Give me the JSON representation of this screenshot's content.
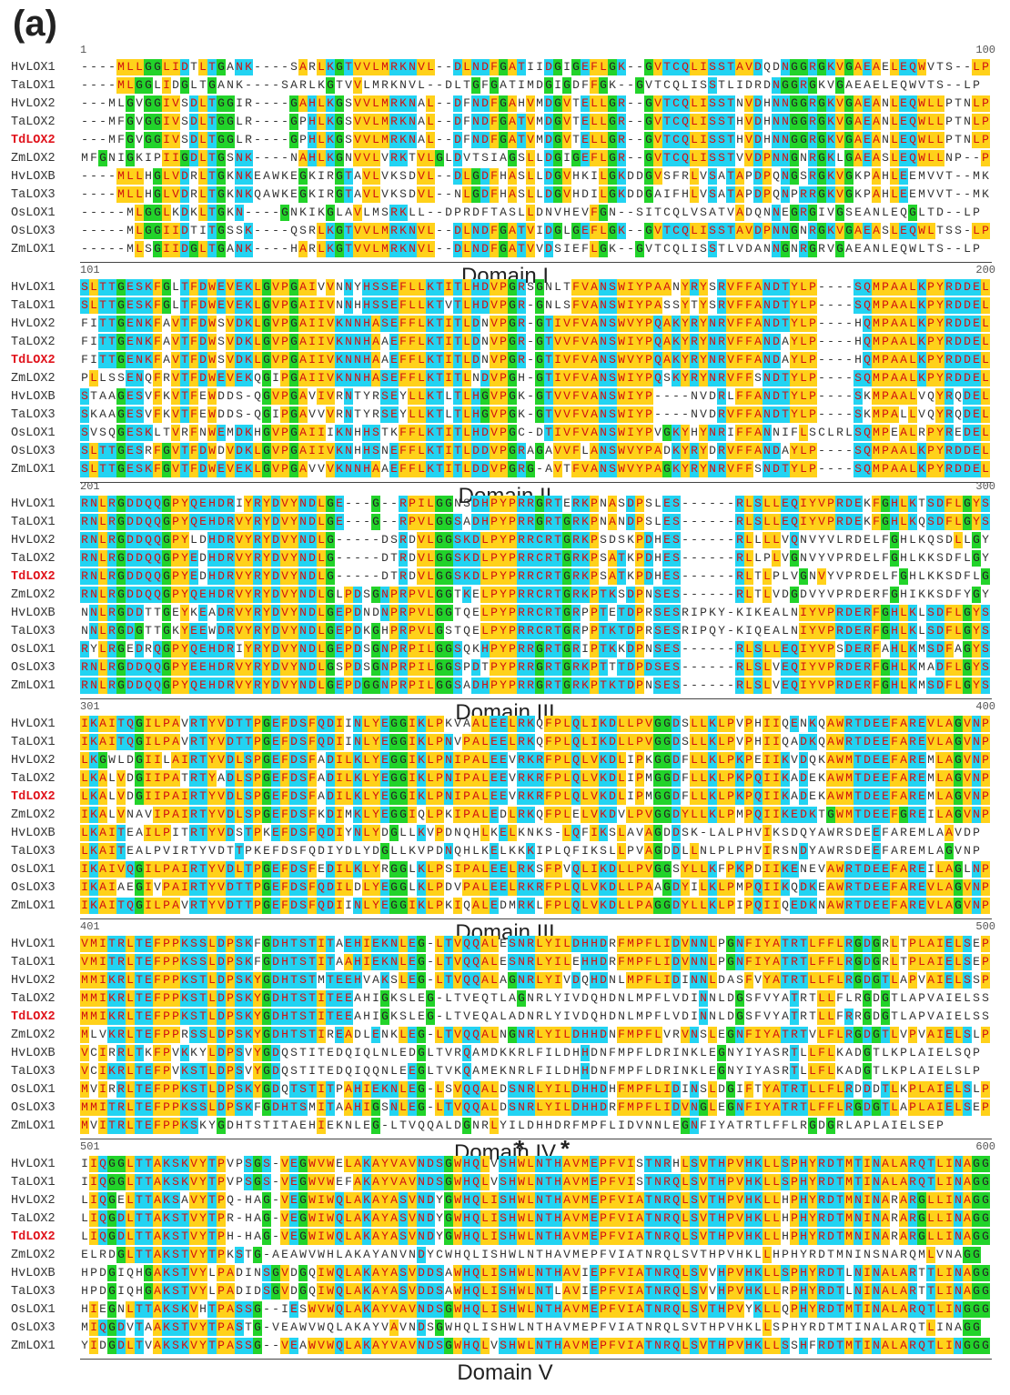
{
  "figure_label": "(a)",
  "sequence_names": [
    "HvLOX1",
    "TaLOX1",
    "HvLOX2",
    "TaLOX2",
    "TdLOX2",
    "ZmLOX2",
    "HvLOXB",
    "TaLOX3",
    "OsLOX1",
    "OsLOX3",
    "ZmLOX1"
  ],
  "highlighted_name": "TdLOX2",
  "colors": {
    "blue": "#22d3f2",
    "yellow": "#ffd11a",
    "green": "#22d32a",
    "highlight_red": "#e0121b"
  },
  "blocks": [
    {
      "start": "1",
      "end": "100",
      "domain": "Domain I",
      "rows": [
        "----MLLGGLIDTLTGANK----SARLKGTVVLMRKNVL--DLNDFGATIIDGIGEFLGK--GVTCQLISSTAVDQDNGGRGKVGAEAELEQWVTS--LP",
        "----MLGGLIDGLTGANK----SARLKGTVVLMRKNVL--DLTGFGATIMDGIGDFFGK--GVTCQLISSTLIDRDNGGRGKVGAEAELEQWVTS--LP",
        "---MLGVGGIVSDLTGGIR----GAHLKGSVVLMRKNAL--DFNDFGAHVMDGVTELLGR--GVTCQLISSTNVDHNNGGRGKVGAEANLEQWLLPTNLP",
        "---MFGVGGIVSDLTGGLR----GPHLKGSVVLMRKNAL--DFNDFGATVMDGVTELLGR--GVTCQLISSTHVDHNNGGRGKVGAEANLEQWLLPTNLP",
        "---MFGVGGIVSDLTGGLR----GPHLKGSVVLMRKNAL--DFNDFGATVMDGVTELLGR--GVTCQLISSTHVDHNNGGRGKVGAEANLEQWLLPTNLP",
        "MFGNIGKIPIIGDLTGSNK----NAHLKGNVVLVRKTVLGLDVTSIAGSLLDGIGEFLGR--GVTCQLISSTVVDPNNGNRGKLGAEASLEQWLLNP--P",
        "----MLLHGLVDRLTGKNKEAWKEGKIRGTAVLVKSDVL--DLGDFHASLLDGVHKILGKDDGVSFRLVSATAPDPQNGSRGKVGKPAHLEEMVVT--MK",
        "----MLLHGLVDRLTGKNKQAWKEGKIRGTAVLVKSDVL--NLGDFHASLLDGVHDILGKDDGAIFHLVSATAPDPQNPRRGKVGKPAHLEEMVVT--MK",
        "-----MLGGLKDKLTGKN----GNKIKGLAVLMSRKLL--DPRDFTASLLDNVHEVFGN--SITCQLVSATVADQNNEGRGIVGSEANLEQGLTD--LP",
        "-----MLGGIIDTITGSSK----QSRLKGTVVLMRKNVL--DLNDFGATVIDGLGEFLGK--GVTCQLISSTAVDPNNGNRGKVGAEASLEQWLTSS-LP",
        "-----MLSGIIDGLTGANK----HARLKGTVVLMRKNVL--DLNDFGATVVDSIEFLGK--GVTCQLISSTLVDANNGNRGRVGAEANLEQWLTS--LP"
      ]
    },
    {
      "start": "101",
      "end": "200",
      "domain": "Domain II",
      "rows": [
        "SLTTGESKFGLTFDWEVEKLGVPGAIVVNNYHSSEFLLKTITLHDVPGRSGNLTFVANSWIYPAANYRYSRVFFANDTYLP----SQMPAALKPYRDDEL",
        "SLTTGESKFGLTFDWEVEKLGVPGAIIVNNHHSSEFLLKTVTLHDVPGR-GNLSFVANSWIYPASSYTYSRVFFANDTYLP----SQMPAALKPYRDDEL",
        "FITTGENKFAVTFDWSVDKLGVPGAIIVKNNHASEFFLKTITLDNVPGR-GTIVFVANSWVYPQAKYRYNRVFFANDTYLP----HQMPAALKPYRDDEL",
        "FITTGENKFAVTFDWSVDKLGVPGAIIVKNNHAAEFFLKTITLDNVPGR-GTVVFVANSWIYPQAKYRYNRVFFANDAYLP----HQMPAALKPYRDDEL",
        "FITTGENKFAVTFDWSVDKLGVPGAIIVKNNHAAEFFLKTITLDNVPGR-GTIVFVANSWVYPQAKYRYNRVFFANDAYLP----HQMPAALKPYRDDEL",
        "PLLSSENQFRVTFDWEVEKQGIPGAIIVKNNHASEFFLKTITLNDVPGH-GTIVFVANSWIYPQSKYRYNRVFFSNDTYLP----SQMPAALKPYRDDEL",
        "STAAGESVFKVTFEWDDS-QGVPGAVIVRNTYRSEYLLKTLTLHGVPGK-GTVVFVANSWIYP----NVDRLFFANDTYLP----SKMPAALVQYRQDEL",
        "SKAAGESVFKVTFEWDDS-QGIPGAVVVRNTYRSEYLLKTLTLHGVPGK-GTVVFVANSWIYP----NVDRVFFANDTYLP----SKMPALLVQYRQDEL",
        "SVSQGESKLTVRFNWEMDKHGVPGAIIIKNHHSTKFFLKTITLHDVPGC-DTIVFVANSWIYPVGKYHYNRIFFANNIFLSCLRLSQMPEALRPYREDEL",
        "SLTTGESRFGVTFDWDVDKLGVPGAIIVKNHHSNEFFLKTITLDDVPGRAGAVVFLANSWVYPADKYRYDRVFFANDAYLP----SQMPAALKPYRDDEL",
        "SLTTGESKFGVTFDWEVEKLGVPGAVVVKNNHAAEFFLKTITLDDVPGRG-AVTFVANSWVYPAGKYRYNRVFFSNDTYLP----SQMPAALKPYRDDEL"
      ]
    },
    {
      "start": "201",
      "end": "300",
      "domain": "Domain III",
      "rows": [
        "RNLRGDDQQGPYQEHDRIYRYDVYNDLGE---G--RPILGGNSDHPYPRRGRTERKPNASDPSLES------RLSLLEQIYVPRDEKFGHLKTSDFLGYS",
        "RNLRGDDQQGPYQEHDRVYRYDVYNDLGE---G--RPVLGGSADHPYPRRGRTGRKPNANDPSLES------RLSLLEQIYVPRDEKFGHLKQSDFLGYS",
        "RNLRGDDQQGPYLDHDRVYRYDVYNDLG-----DSRDVLGGSKDLPYPRRCRTGRKPSDSKPDHES------RLLLLVQNVYVLRDELFGHLKQSDLLGYT",
        "RNLRGDDQQGPYEDHDRVYRYDVYNDLG-----DTRDVLGGSKDLPYPRRCRTGRKPSATKPDHES------RLLPLVGNVYVPRDELFGHLKKSDFLGYT",
        "RNLRGDDQQGPYEDHDRVYRYDVYNDLG-----DTRDVLGGSKDLPYPRRCRTGRKPSATKPDHES------RLTLPLVGNVYVPRDELFGHLKKSDFLGYT",
        "RNLRGDDQQGPYQEHDRVYRYDVYNDLGLPDSGNPRPVLGGTKELPYPRRCRTGRKPTKSDPNSES------RLTLVDGDVYVPRDERFGHIKKSDFYGYA",
        "NNLRGDDTTGEYKEADRVYRYDVYNDLGEPDNDNPRPVLGGTQELPYPRRCRTGRPPTETDPRSESRIPKY-KIKEALNIYVPRDERFGHLKLSDFLGYS",
        "NNLRGDGTTGKYEEWDRVYRYDVYNDLGEPDKGHPRPVLGSTQELPYPRRCRTGRPPTKTDPRSESRIPQY-KIQEALNIYVPRDERFGHLKLSDFLGYS",
        "RYLRGEDRQGPYQEHDRIYRYDVYNDLGEPDSGNPRPILGGSQKHPYPRRGRTGRIPTKKDPNSES------RLSLLEQIYVPSDERFAHLKMSDFAGYS",
        "RNLRGDDQQGPYEEHDRVYRYDVYNDLGSPDSGNPRPILGGSPDTPYPRRGRTGRKPTTTDPDSES------RLSLVEQIYVPRDERFGHLKMADFLGYS",
        "RNLRGDDQQGPYQEHDRVYRYDVYNDLGEPDGGNPRPILGGSADHPYPRRGRTGRKPTKTDPNSES------RLSLVEQIYVPRDERFGHLKMSDFLGYS"
      ]
    },
    {
      "start": "301",
      "end": "400",
      "domain": "Domain III",
      "rows": [
        "IKAITQGILPAVRTYVDTTPGEFDSFQDIINLYEGGIKLPKVAALEELRKQFPLQLIKDLLPVGGDSLLKLPVPHIIQENKQAWRTDEEFAREVLAGVNP",
        "IKAITQGILPAVRTYVDTTPGEFDSFQDIINLYEGGIKLPNVPALEELRKQFPLQLIKDLLPVGGDSLLKLPVPHIIQADKQAWRTDEEFAREVLAGVNP",
        "LKGWLDGIILAIRTYVDLSPGEFDSFADILKLYEGGIKLPNIPALEEVRKRFPLQLVKDLIPKGGDFLLKLPKPEIIKVDQKAWMTDEEFAREMLAGVNP",
        "LKALVDGIIPATRTYADLSPGEFDSFADILKLYEGGIKLPNIPALEEVRKRFPLQLVKDLIPMGGDFLLKLPKPQIIKADEKAWMTDEEFAREMLAGVNP",
        "LKALVDGIIPAIRTYVDLSPGEFDSFADILKLYEGGIKLPNIPALEEVRKRFPLQLVKDLIPMGGDFLLKLPKPQIIKADEKAWMTDEEFAREMLAGVNP",
        "IKALVNAVIPAIRTYVDLSPGEFDSFKDIMKLYEGGIQLPKIPALEDLRKQFPLELVKDVLPVGGDYLLKLPMPQIIKEDKTGWMTDEEFGREILAGVNP",
        "LKAITEAILPITRTYVDSTPKEFDSFQDIYNLYDGLLKVPDNQHLKELKNKS-LQFIKSLAVAGDDSK-LALPHVIKSDQYAWRSDEEFAREMLAAVDP",
        "LKAITEALPVIRTYVDTTPKEFDSFQDIYDLYDGLLKVPDNQHLKELKKKIPLQFIKSLLPVAGDDLLNLPLPHVIRSNDYAWRSDEEFAREMLAGVNP",
        "IKAIVQGILPAIRTYVDLTPGEFDSFEDILKLYRGGLKLPSIPALEELRKSFPVQLIKDLLPVGGSYLLKFPKPDIIKENEVAWRTDEEFAREILAGLNP",
        "IKAIAEGIVPAIRTYVDTTPGEFDSFQDILDLYEGGLKLPDVPALEELRKRFPLQLVKDLLPAAGDYILKLPMPQIIKQDKEAWRTDEEFAREVLAGVNP",
        "IKAITQGILPAVRTYVDTTPGEFDSFQDIINLYEGGIKLPKIQALEDMRKLFPLQLVKDLLPAGGDYLLKLPIPQIIQEDKNAWRTDEEFAREVLAGVNP"
      ]
    },
    {
      "start": "401",
      "end": "500",
      "domain": "Domain IV",
      "rows": [
        "VMITRLTEFPPKSSLDPSKFGDHTSTITAEHIEKNLEG-LTVQQALESNRLYILDHHDRFMPFLIDVNNLPGNFIYATRTLFFLRGDGRLTPLAIELSEP",
        "VMITRLTEFPPKSSLDPSKFGDHTSTITAAHIEKNLEG-LTVQQALESNRLYILEHHDRFMPFLIDVNNLPGNFIYATRTLFFLRGDGRLTPLAIELSEP",
        "MMIKRLTEFPPKSTLDPSKYGDHTSTMTEEHVAKSLEG-LTVQQALAGNRLYIVDQHDNLMPFLIDINNLDASFVYATRTLLFLRGDGTLAPVAIELSSP",
        "MMIKRLTEFPPKSTLDPSKYGDHTSTITEEAHIGKSLEG-LTVEQTLAGNRLYIVDQHDNLMPFLVDINNLDGSFVYATRTLLFLRGDGTLAPVAIELSSP",
        "MMIKRLTEFPPKSTLDPSKYGDHTSTITEEAHIGKSLEG-LTVEQALADNRLYIVDQHDNLMPFLVDINNLDGSFVYATRTLLFRRGDGTLAPVAIELSSP",
        "MLVKRLTEFPPRSSLDPSKYGDHTSTIREADLENKLEG-LTVQQALNGNRLYILDHHDNFMPFLVRVNSLEGNFIYATRTVLFLRGDGTLVPVAIELSLP",
        "VCIRRLTKFPVKKYLDPSVYGDQSTITEDQIQLNLEDGLTVRQAMDKKRLFILDHHDNFMPFLDRINKLEGNYIYASRTLLFLKADGTLKPLAIELSQP",
        "VCIKRLTEFPVKSTLDPSVYGDQSTITEDQIQQNLEEGLTVKQAMEKNRLFILDHHDNFMPFLDRINKLEGNYIYASRTLLFLKADGTLKPLAIELSLP",
        "MVIRRLTEFPPKSTLDPSKYGDQTSTITPAHIEKNLEG-LSVQQALDSNRLYILDHHDHFMPFLIDINSLDGIFTYATRTLLFLRDDDTLKPLAIELSLP",
        "MMITRLTEFPPKSSLDPSKFGDHTSMITAAHIGSNLEG-LTVQQALDSNRLYILDHHDRFMPFLIDVNGLEGNFIYATRTLFFLRGDGTLAPLAIELSEP",
        "MVITRLTEFPPKSKYGDHTSTITAEHIEKNLEG-LTVQQALDGNRLYILDHHDRFMPFLIDVNNLEGNFIYATRTLFFLRGDGRLAPLAIELSEP"
      ]
    },
    {
      "start": "501",
      "end": "600",
      "domain": "Domain V",
      "stars": [
        "*",
        "*"
      ],
      "rows": [
        "IIQGGLTTAKSKVYTPVPSGS-VEGWVWELAKAYVAVNDSGWHQLVSHWLNTHAVMEPFVISTNRHLSVTHPVHKLLSPHYRDTMTINALARQTLINAGG",
        "IIQGGLTTAKSKVYTPVPSGS-VEGWVWEFAKAYVAVNDSGWHQLVSHWLNTHAVMEPFVISTNRQLSVTHPVHKLLSPHYRDTMTINALARQTLINAGG",
        "LIQGELTTAKSAVYTPQ-HAG-VEGWIWQLAKAYASVNDYGWHQLISHWLNTHAVMEPFVIATNRQLSVTHPVHKLLHPHYRDTMNINARARGLLINAGG",
        "LIQGDLTTAKSTVYTPR-HAG-VEGWIWQLAKAYASVNDYGWHQLISHWLNTHAVMEPFVIATNRQLSVTHPVHKLLHPHYRDTMNINARARGLLINAGG",
        "LIQGDLTTAKSTVYTPH-HAG-VEGWIWQLAKAYASVNDYGWHQLISHWLNTHAVMEPFVIATNRQLSVTHPVHKLLHPHYRDTMNINARARGLLINAGG",
        "ELRDGLTTAKSTVYTPKSTG-AEAWVWHLAKAYANVNDYCWHQLISHWLNTHAVMEPFVIATNRQLSVTHPVHKLLHPHYRDTMNINSNARQMLVNAGG",
        "HPDGIQHGAKSTVYLPADINSGVDGQIWQLAKAYASVDDSAWHQLISHWLNTHAVIEPFVIATNRQLSVVHPVHKLLSPHYRDTLNINALARTTLINAGG",
        "HPDGIQHGAKSTVYLPADIDSGVDGQIWQLAKAYASVDDSAWHQLISHWLNTLAVIEPFVIATNRQLSVVHPVHKLLRPHYRDTLNINALARTTLINAGG",
        "HIEGNLTTAKSKVHTPASSG--IESWVWQLAKAYVAVNDSGWHQLISHWLNTHAVMEPFVIATNRQLSVTHPVYKLLQPHYRDTMTINALARQTLINGGG",
        "MIQGDVTAAKSTVYTPASTG-VEAWVWQLAKAYVAVNDSGWHQLISHWLNTHAVMEPFVIATNRQLSVTHPVHKLLSPHYRDTMTINALARQTLINAGG",
        "YIDGDLTVAKSKVYTPASSG--VEAWVWQLAKAYVAVNDSGWHQLVSHWLNTHAVMEPFVIATNRQLSVTHPVHKLLSSHFRDTMTINALARQTLINGGG"
      ]
    }
  ]
}
